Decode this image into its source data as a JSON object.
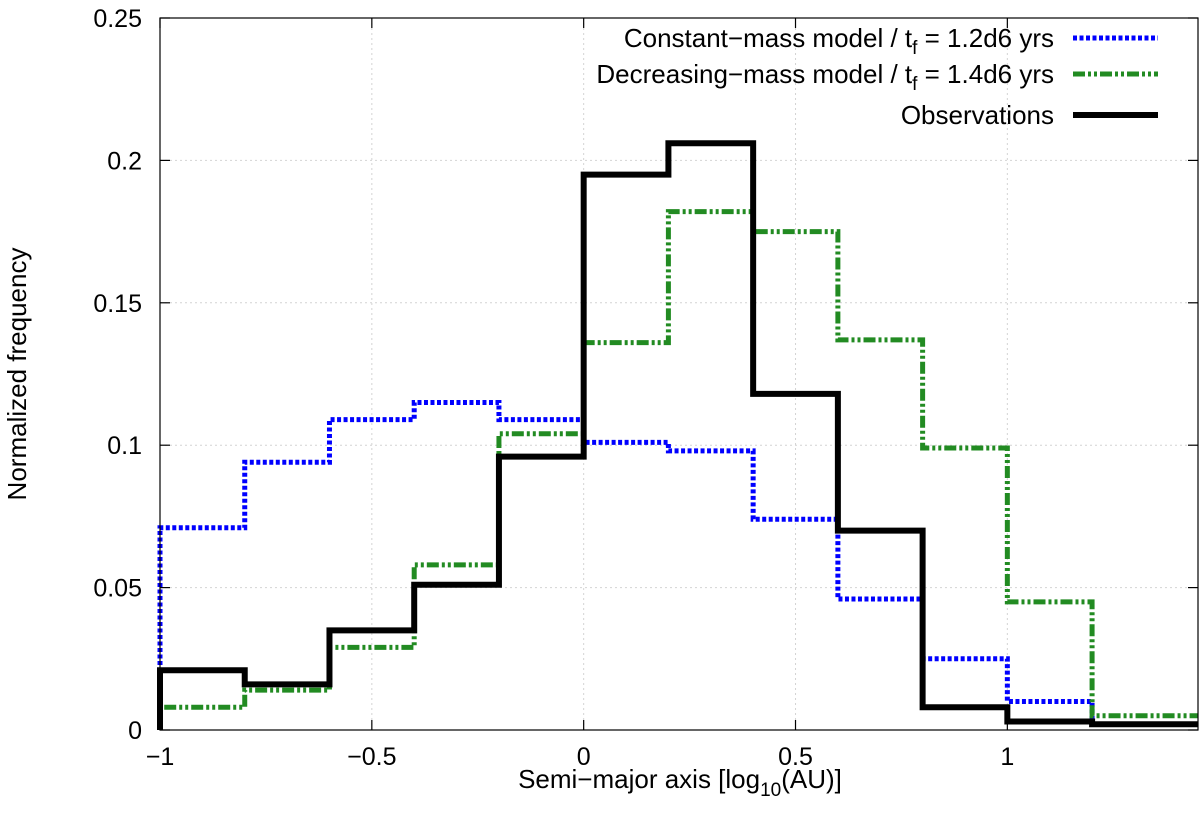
{
  "chart_data": {
    "type": "line",
    "step": true,
    "title": "",
    "xlabel": "Semi−major axis [log",
    "xlabel_sub": "10",
    "xlabel_tail": "(AU)]",
    "ylabel": "Normalized frequency",
    "xlim": [
      -1,
      1.45
    ],
    "ylim": [
      0,
      0.25
    ],
    "grid": true,
    "legend_position": "top-right",
    "xticks": [
      {
        "value": -1,
        "label": "−1"
      },
      {
        "value": -0.5,
        "label": "−0.5"
      },
      {
        "value": 0,
        "label": "0"
      },
      {
        "value": 0.5,
        "label": "0.5"
      },
      {
        "value": 1,
        "label": "1"
      }
    ],
    "yticks": [
      {
        "value": 0,
        "label": "0"
      },
      {
        "value": 0.05,
        "label": "0.05"
      },
      {
        "value": 0.1,
        "label": "0.1"
      },
      {
        "value": 0.15,
        "label": "0.15"
      },
      {
        "value": 0.2,
        "label": "0.2"
      },
      {
        "value": 0.25,
        "label": "0.25"
      }
    ],
    "bin_edges": [
      -1.0,
      -0.8,
      -0.6,
      -0.4,
      -0.2,
      0.0,
      0.2,
      0.4,
      0.6,
      0.8,
      1.0,
      1.2,
      1.45
    ],
    "series": [
      {
        "name": "Constant-mass model",
        "legend_main": "Constant−mass model / t",
        "legend_sub": "f",
        "legend_tail": " = 1.2d6 yrs",
        "color": "#0000ff",
        "style": "dotted",
        "values": [
          0.071,
          0.094,
          0.109,
          0.115,
          0.109,
          0.101,
          0.098,
          0.074,
          0.046,
          0.025,
          0.01,
          0.002
        ]
      },
      {
        "name": "Decreasing-mass model",
        "legend_main": "Decreasing−mass model / t",
        "legend_sub": "f",
        "legend_tail": " = 1.4d6 yrs",
        "color": "#228b22",
        "style": "dashdotdot",
        "values": [
          0.008,
          0.014,
          0.029,
          0.058,
          0.104,
          0.136,
          0.182,
          0.175,
          0.137,
          0.099,
          0.045,
          0.005
        ]
      },
      {
        "name": "Observations",
        "legend_main": "Observations",
        "legend_sub": "",
        "legend_tail": "",
        "color": "#000000",
        "style": "solid",
        "values": [
          0.021,
          0.016,
          0.035,
          0.051,
          0.096,
          0.195,
          0.206,
          0.118,
          0.07,
          0.008,
          0.003,
          0.002
        ]
      }
    ]
  }
}
